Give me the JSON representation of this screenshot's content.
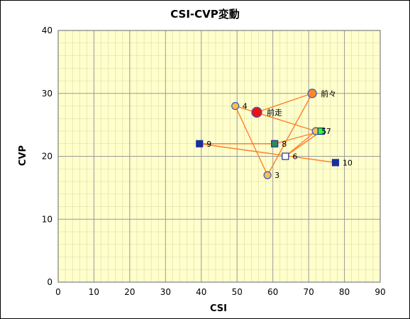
{
  "chart_data": {
    "type": "scatter",
    "title": "CSI-CVP変動",
    "xlabel": "CSI",
    "ylabel": "CVP",
    "xlim": [
      0,
      90
    ],
    "ylim": [
      0,
      40
    ],
    "xticks": [
      0,
      10,
      20,
      30,
      40,
      50,
      60,
      70,
      80,
      90
    ],
    "yticks": [
      0,
      10,
      20,
      30,
      40
    ],
    "grid": true,
    "colors": {
      "plot_bg": "#ffffcc",
      "grid": "#999999",
      "line": "#ff7f27",
      "circle_fill": "#ffc040",
      "circle_stroke": "#3355cc",
      "square_fill": "#1a2f9a",
      "green_fill": "#2e8b57",
      "lime_fill": "#33ff33",
      "white_fill": "#ffffff",
      "latest_fill": "#ee1111",
      "prev_fill": "#ff8822"
    },
    "points": [
      {
        "label": "前走",
        "x": 55.5,
        "y": 27,
        "shape": "circle-large",
        "fill": "latest"
      },
      {
        "label": "前々",
        "x": 71,
        "y": 30,
        "shape": "circle-medium",
        "fill": "prev"
      },
      {
        "label": "3",
        "x": 58.5,
        "y": 17,
        "shape": "circle",
        "fill": "circle"
      },
      {
        "label": "4",
        "x": 49.5,
        "y": 28,
        "shape": "circle",
        "fill": "circle"
      },
      {
        "label": "5",
        "x": 72,
        "y": 24,
        "shape": "circle",
        "fill": "circle"
      },
      {
        "label": "6",
        "x": 63.5,
        "y": 20,
        "shape": "square",
        "fill": "white"
      },
      {
        "label": "7",
        "x": 73.5,
        "y": 24,
        "shape": "square",
        "fill": "lime"
      },
      {
        "label": "8",
        "x": 60.5,
        "y": 22,
        "shape": "square",
        "fill": "green"
      },
      {
        "label": "9",
        "x": 39.5,
        "y": 22,
        "shape": "square",
        "fill": "square"
      },
      {
        "label": "10",
        "x": 77.5,
        "y": 19,
        "shape": "square",
        "fill": "square"
      }
    ],
    "path_order": [
      "10",
      "9",
      "8",
      "7",
      "6",
      "5",
      "4",
      "3",
      "前々",
      "前走"
    ]
  }
}
